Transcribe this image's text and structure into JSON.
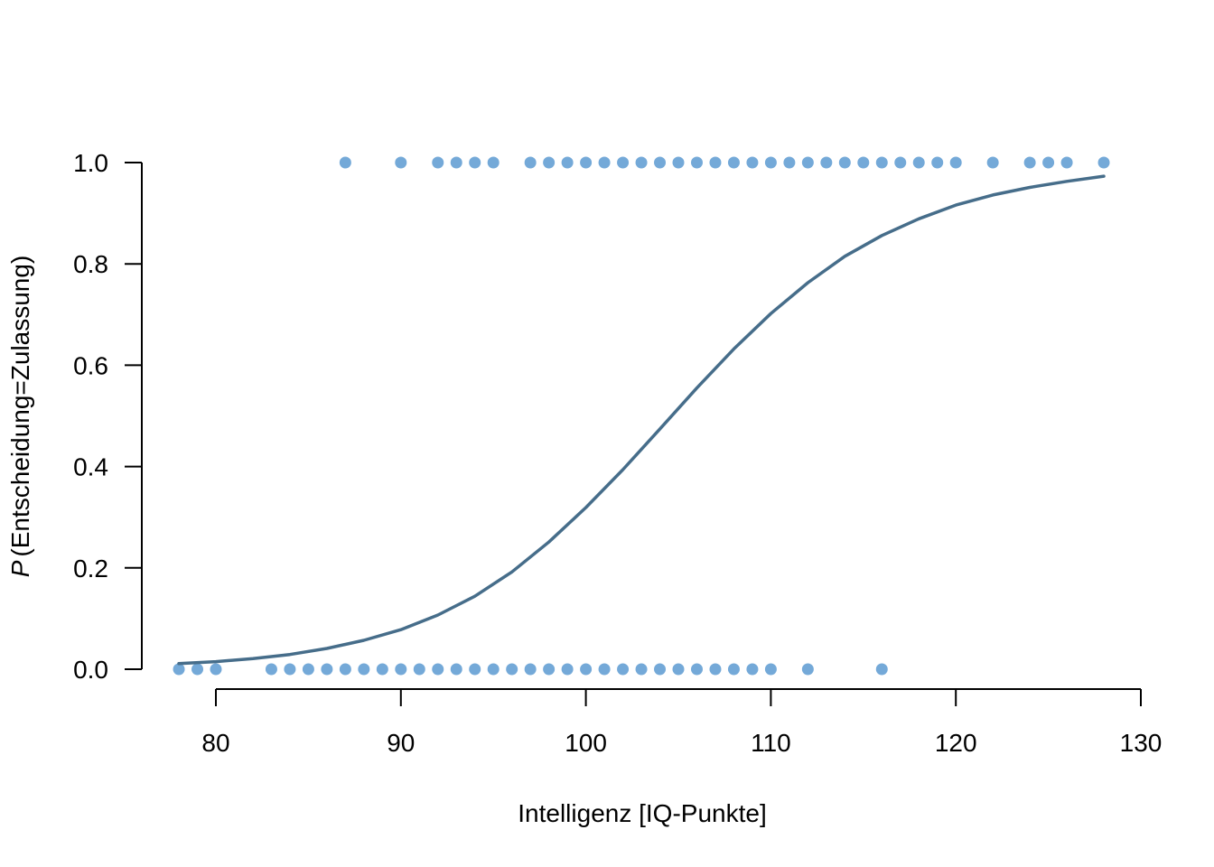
{
  "chart_data": {
    "type": "scatter",
    "xlabel": "Intelligenz [IQ-Punkte]",
    "ylabel_prefix": "P",
    "ylabel_rest": "(Entscheidung=Zulassung)",
    "xlim": [
      78,
      128
    ],
    "ylim": [
      0,
      1
    ],
    "x_ticks": [
      80,
      90,
      100,
      110,
      120,
      130
    ],
    "x_tick_labels": [
      "80",
      "90",
      "100",
      "110",
      "120",
      "130"
    ],
    "y_ticks": [
      0,
      0.2,
      0.4,
      0.6,
      0.8,
      1.0
    ],
    "y_tick_labels": [
      "0.0",
      "0.2",
      "0.4",
      "0.6",
      "0.8",
      "1.0"
    ],
    "grid": false,
    "colors": {
      "points": "#74a9d8",
      "curve": "#466d8a"
    },
    "series": [
      {
        "type": "scatter",
        "y": 1.0,
        "x": [
          87,
          90,
          92,
          93,
          94,
          95,
          97,
          98,
          99,
          100,
          101,
          102,
          103,
          104,
          105,
          106,
          107,
          108,
          109,
          110,
          111,
          112,
          113,
          114,
          115,
          116,
          117,
          118,
          119,
          120,
          122,
          124,
          125,
          126,
          128
        ]
      },
      {
        "type": "scatter",
        "y": 0.0,
        "x": [
          78,
          79,
          80,
          83,
          84,
          85,
          86,
          87,
          88,
          89,
          90,
          91,
          92,
          93,
          94,
          95,
          96,
          97,
          98,
          99,
          100,
          101,
          102,
          103,
          104,
          105,
          106,
          107,
          108,
          109,
          110,
          112,
          116
        ]
      },
      {
        "type": "line",
        "x": [
          78,
          80,
          82,
          84,
          86,
          88,
          90,
          92,
          94,
          96,
          98,
          100,
          102,
          104,
          106,
          108,
          110,
          112,
          114,
          116,
          118,
          120,
          122,
          124,
          126,
          128
        ],
        "y": [
          0.011,
          0.015,
          0.021,
          0.029,
          0.041,
          0.057,
          0.078,
          0.107,
          0.144,
          0.192,
          0.251,
          0.319,
          0.394,
          0.474,
          0.555,
          0.632,
          0.702,
          0.763,
          0.815,
          0.856,
          0.889,
          0.916,
          0.936,
          0.951,
          0.963,
          0.973
        ]
      }
    ]
  }
}
